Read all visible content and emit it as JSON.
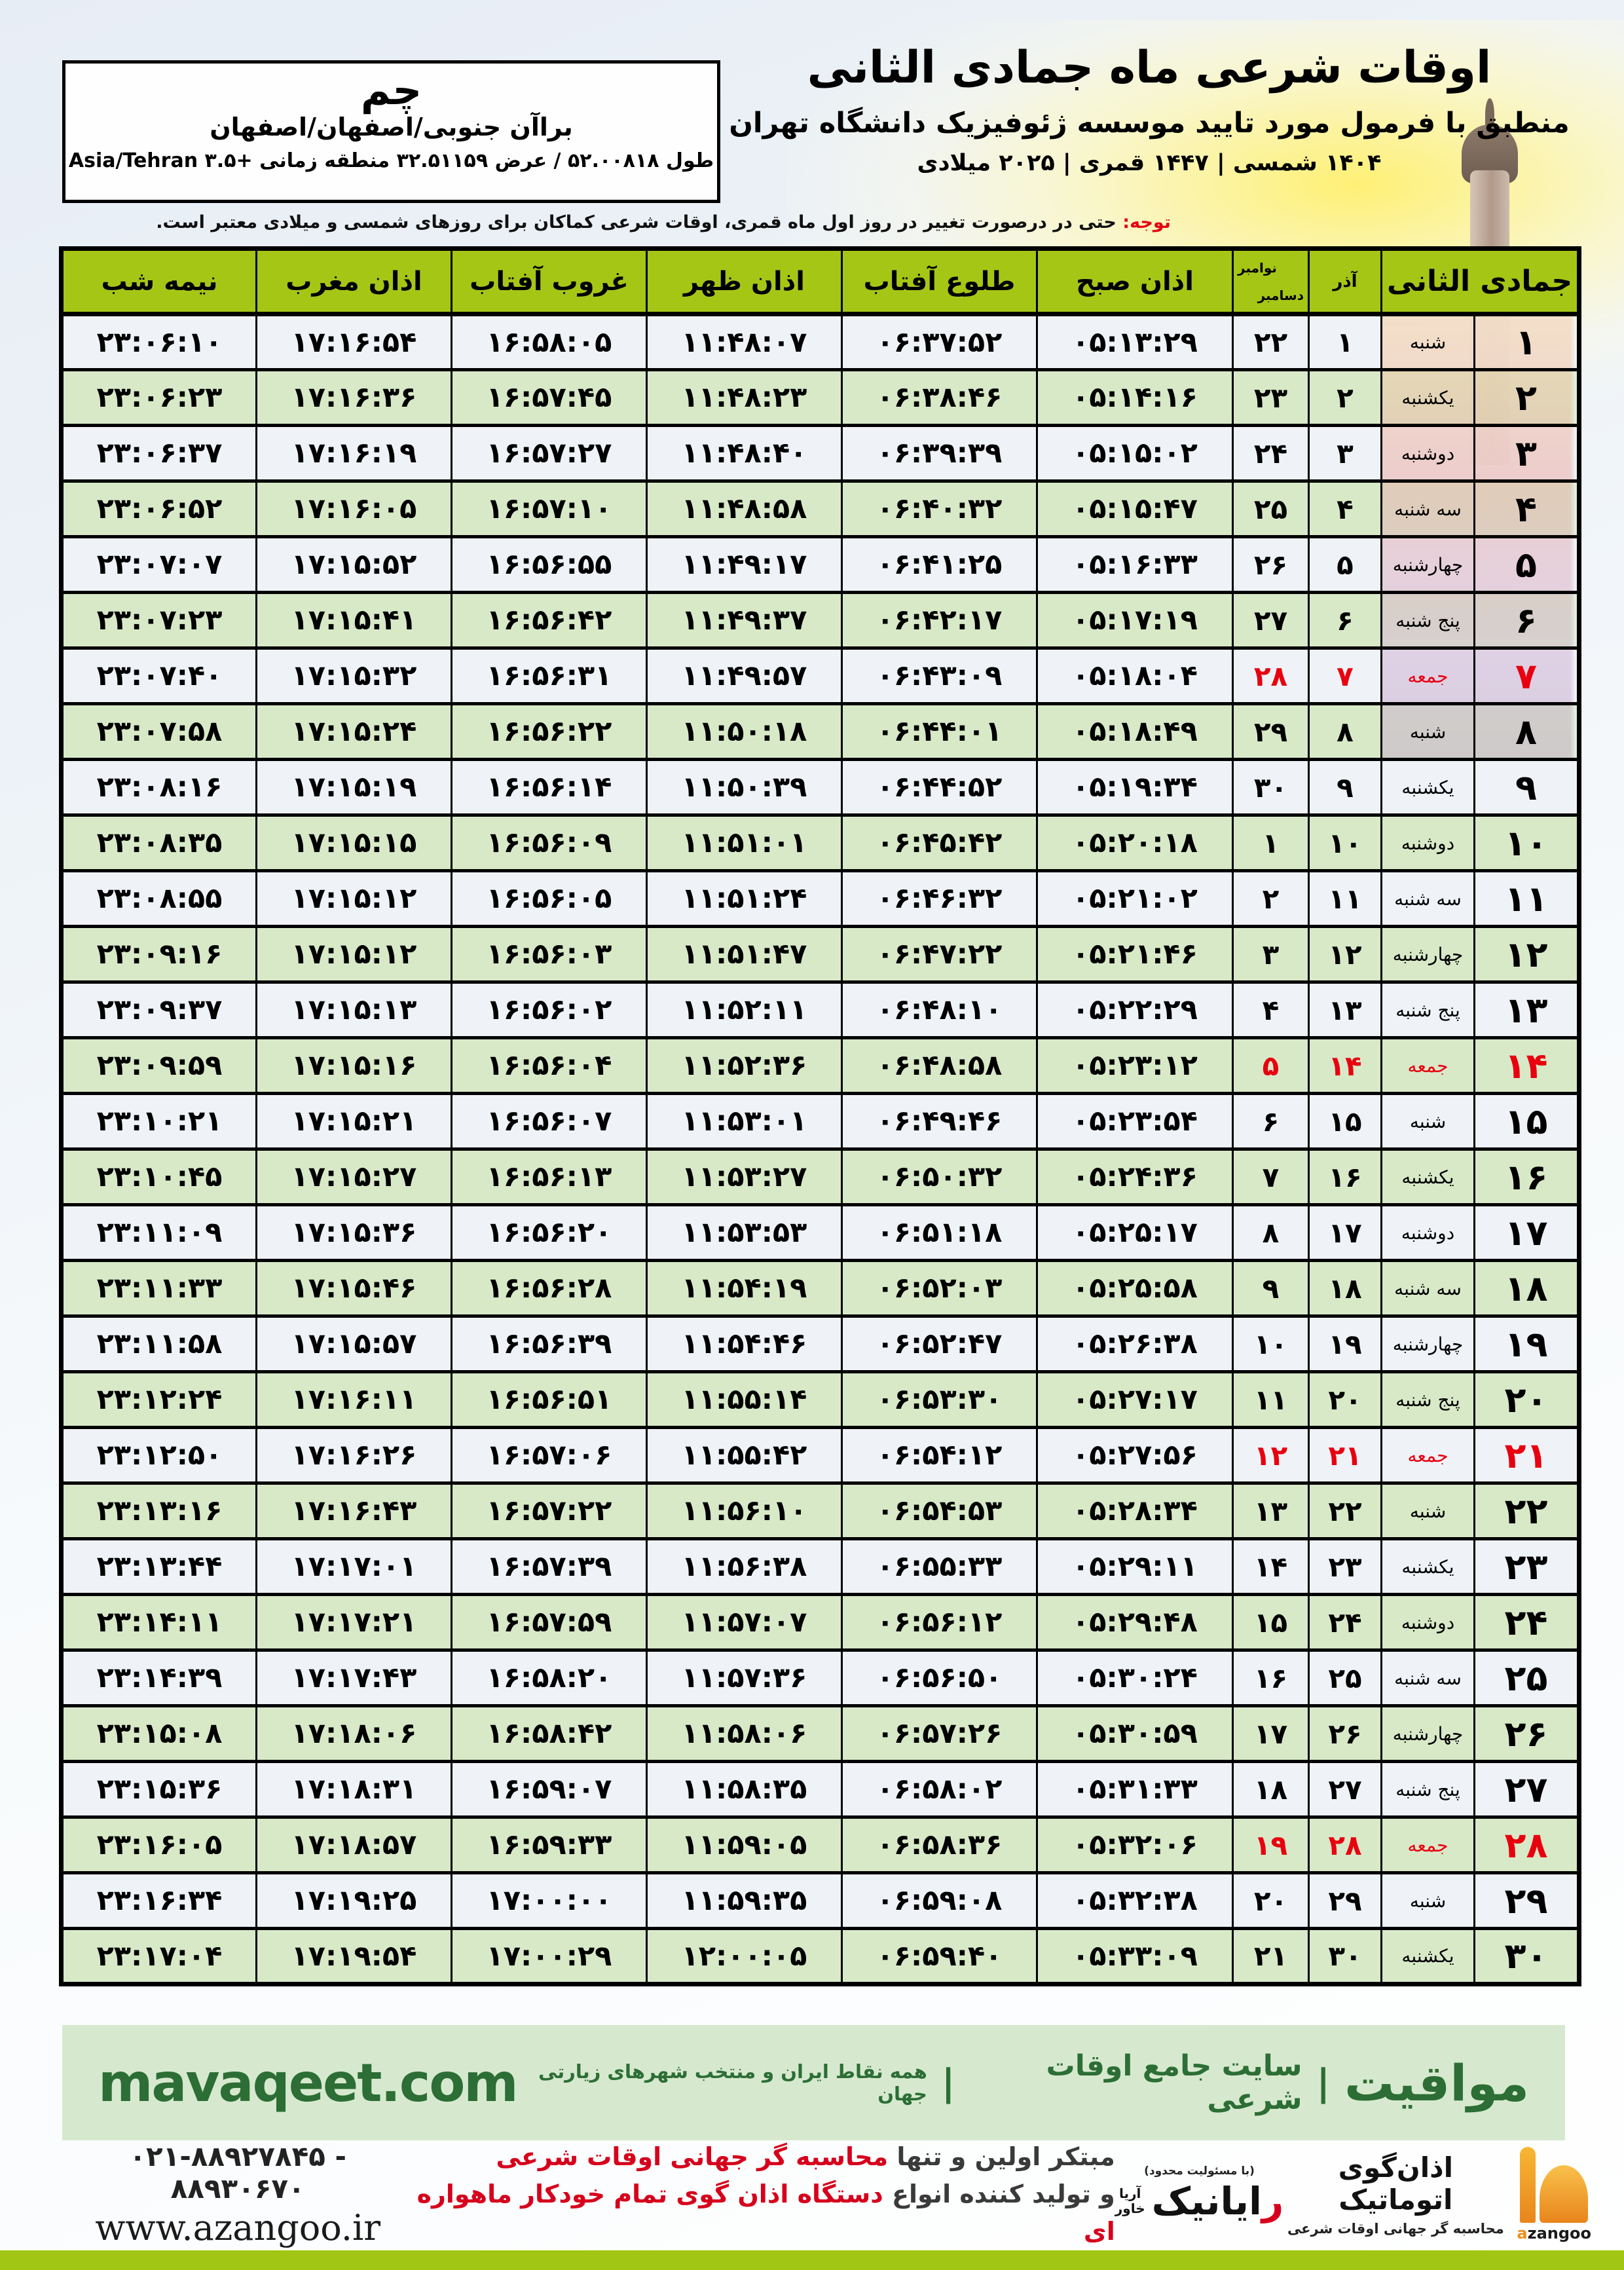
{
  "location_box": {
    "city": "چم",
    "region": "براآن جنوبی/اصفهان/اصفهان",
    "coords": "طول ۵۲.۰۰۸۱۸ / عرض ۳۲.۵۱۱۵۹ منطقه زمانی +۳.۵ Asia/Tehran"
  },
  "header": {
    "title": "اوقات شرعی ماه جمادی الثانی",
    "subtitle": "منطبق با فرمول مورد تایید موسسه ژئوفیزیک دانشگاه تهران",
    "years": "۱۴۰۴ شمسی | ۱۴۴۷ قمری | ۲۰۲۵ میلادی"
  },
  "notice": {
    "label": "توجه:",
    "text": "حتی در درصورت تغییر در روز اول ماه قمری، اوقات شرعی کماکان برای روزهای شمسی و میلادی معتبر است."
  },
  "table": {
    "headers": {
      "jamadi": "جمادی الثانی",
      "azar": "آذر",
      "november": "نوامبر",
      "december": "دسامبر",
      "fajr": "اذان صبح",
      "sunrise": "طلوع آفتاب",
      "dhuhr": "اذان ظهر",
      "sunset": "غروب آفتاب",
      "maghrib": "اذان مغرب",
      "midnight": "نیمه شب"
    },
    "rows": [
      {
        "d": 1,
        "w": "شنبه",
        "a": 1,
        "n": 22,
        "sobh": "05:13:29",
        "tolu": "06:37:52",
        "zohr": "11:48:07",
        "ghorub": "16:58:05",
        "maghreb": "17:16:54",
        "nime": "23:06:10",
        "f": false
      },
      {
        "d": 2,
        "w": "یکشنبه",
        "a": 2,
        "n": 23,
        "sobh": "05:14:16",
        "tolu": "06:38:46",
        "zohr": "11:48:23",
        "ghorub": "16:57:45",
        "maghreb": "17:16:36",
        "nime": "23:06:23",
        "f": false
      },
      {
        "d": 3,
        "w": "دوشنبه",
        "a": 3,
        "n": 24,
        "sobh": "05:15:02",
        "tolu": "06:39:39",
        "zohr": "11:48:40",
        "ghorub": "16:57:27",
        "maghreb": "17:16:19",
        "nime": "23:06:37",
        "f": false
      },
      {
        "d": 4,
        "w": "سه شنبه",
        "a": 4,
        "n": 25,
        "sobh": "05:15:47",
        "tolu": "06:40:32",
        "zohr": "11:48:58",
        "ghorub": "16:57:10",
        "maghreb": "17:16:05",
        "nime": "23:06:52",
        "f": false
      },
      {
        "d": 5,
        "w": "چهارشنبه",
        "a": 5,
        "n": 26,
        "sobh": "05:16:33",
        "tolu": "06:41:25",
        "zohr": "11:49:17",
        "ghorub": "16:56:55",
        "maghreb": "17:15:52",
        "nime": "23:07:07",
        "f": false
      },
      {
        "d": 6,
        "w": "پنج شنبه",
        "a": 6,
        "n": 27,
        "sobh": "05:17:19",
        "tolu": "06:42:17",
        "zohr": "11:49:37",
        "ghorub": "16:56:42",
        "maghreb": "17:15:41",
        "nime": "23:07:23",
        "f": false
      },
      {
        "d": 7,
        "w": "جمعه",
        "a": 7,
        "n": 28,
        "sobh": "05:18:04",
        "tolu": "06:43:09",
        "zohr": "11:49:57",
        "ghorub": "16:56:31",
        "maghreb": "17:15:32",
        "nime": "23:07:40",
        "f": true
      },
      {
        "d": 8,
        "w": "شنبه",
        "a": 8,
        "n": 29,
        "sobh": "05:18:49",
        "tolu": "06:44:01",
        "zohr": "11:50:18",
        "ghorub": "16:56:22",
        "maghreb": "17:15:24",
        "nime": "23:07:58",
        "f": false
      },
      {
        "d": 9,
        "w": "یکشنبه",
        "a": 9,
        "n": 30,
        "sobh": "05:19:34",
        "tolu": "06:44:52",
        "zohr": "11:50:39",
        "ghorub": "16:56:14",
        "maghreb": "17:15:19",
        "nime": "23:08:16",
        "f": false
      },
      {
        "d": 10,
        "w": "دوشنبه",
        "a": 10,
        "n": 1,
        "sobh": "05:20:18",
        "tolu": "06:45:42",
        "zohr": "11:51:01",
        "ghorub": "16:56:09",
        "maghreb": "17:15:15",
        "nime": "23:08:35",
        "f": false
      },
      {
        "d": 11,
        "w": "سه شنبه",
        "a": 11,
        "n": 2,
        "sobh": "05:21:02",
        "tolu": "06:46:32",
        "zohr": "11:51:24",
        "ghorub": "16:56:05",
        "maghreb": "17:15:12",
        "nime": "23:08:55",
        "f": false
      },
      {
        "d": 12,
        "w": "چهارشنبه",
        "a": 12,
        "n": 3,
        "sobh": "05:21:46",
        "tolu": "06:47:22",
        "zohr": "11:51:47",
        "ghorub": "16:56:03",
        "maghreb": "17:15:12",
        "nime": "23:09:16",
        "f": false
      },
      {
        "d": 13,
        "w": "پنج شنبه",
        "a": 13,
        "n": 4,
        "sobh": "05:22:29",
        "tolu": "06:48:10",
        "zohr": "11:52:11",
        "ghorub": "16:56:02",
        "maghreb": "17:15:13",
        "nime": "23:09:37",
        "f": false
      },
      {
        "d": 14,
        "w": "جمعه",
        "a": 14,
        "n": 5,
        "sobh": "05:23:12",
        "tolu": "06:48:58",
        "zohr": "11:52:36",
        "ghorub": "16:56:04",
        "maghreb": "17:15:16",
        "nime": "23:09:59",
        "f": true
      },
      {
        "d": 15,
        "w": "شنبه",
        "a": 15,
        "n": 6,
        "sobh": "05:23:54",
        "tolu": "06:49:46",
        "zohr": "11:53:01",
        "ghorub": "16:56:07",
        "maghreb": "17:15:21",
        "nime": "23:10:21",
        "f": false
      },
      {
        "d": 16,
        "w": "یکشنبه",
        "a": 16,
        "n": 7,
        "sobh": "05:24:36",
        "tolu": "06:50:32",
        "zohr": "11:53:27",
        "ghorub": "16:56:13",
        "maghreb": "17:15:27",
        "nime": "23:10:45",
        "f": false
      },
      {
        "d": 17,
        "w": "دوشنبه",
        "a": 17,
        "n": 8,
        "sobh": "05:25:17",
        "tolu": "06:51:18",
        "zohr": "11:53:53",
        "ghorub": "16:56:20",
        "maghreb": "17:15:36",
        "nime": "23:11:09",
        "f": false
      },
      {
        "d": 18,
        "w": "سه شنبه",
        "a": 18,
        "n": 9,
        "sobh": "05:25:58",
        "tolu": "06:52:03",
        "zohr": "11:54:19",
        "ghorub": "16:56:28",
        "maghreb": "17:15:46",
        "nime": "23:11:33",
        "f": false
      },
      {
        "d": 19,
        "w": "چهارشنبه",
        "a": 19,
        "n": 10,
        "sobh": "05:26:38",
        "tolu": "06:52:47",
        "zohr": "11:54:46",
        "ghorub": "16:56:39",
        "maghreb": "17:15:57",
        "nime": "23:11:58",
        "f": false
      },
      {
        "d": 20,
        "w": "پنج شنبه",
        "a": 20,
        "n": 11,
        "sobh": "05:27:17",
        "tolu": "06:53:30",
        "zohr": "11:55:14",
        "ghorub": "16:56:51",
        "maghreb": "17:16:11",
        "nime": "23:12:24",
        "f": false
      },
      {
        "d": 21,
        "w": "جمعه",
        "a": 21,
        "n": 12,
        "sobh": "05:27:56",
        "tolu": "06:54:12",
        "zohr": "11:55:42",
        "ghorub": "16:57:06",
        "maghreb": "17:16:26",
        "nime": "23:12:50",
        "f": true
      },
      {
        "d": 22,
        "w": "شنبه",
        "a": 22,
        "n": 13,
        "sobh": "05:28:34",
        "tolu": "06:54:53",
        "zohr": "11:56:10",
        "ghorub": "16:57:22",
        "maghreb": "17:16:43",
        "nime": "23:13:16",
        "f": false
      },
      {
        "d": 23,
        "w": "یکشنبه",
        "a": 23,
        "n": 14,
        "sobh": "05:29:11",
        "tolu": "06:55:33",
        "zohr": "11:56:38",
        "ghorub": "16:57:39",
        "maghreb": "17:17:01",
        "nime": "23:13:44",
        "f": false
      },
      {
        "d": 24,
        "w": "دوشنبه",
        "a": 24,
        "n": 15,
        "sobh": "05:29:48",
        "tolu": "06:56:12",
        "zohr": "11:57:07",
        "ghorub": "16:57:59",
        "maghreb": "17:17:21",
        "nime": "23:14:11",
        "f": false
      },
      {
        "d": 25,
        "w": "سه شنبه",
        "a": 25,
        "n": 16,
        "sobh": "05:30:24",
        "tolu": "06:56:50",
        "zohr": "11:57:36",
        "ghorub": "16:58:20",
        "maghreb": "17:17:43",
        "nime": "23:14:39",
        "f": false
      },
      {
        "d": 26,
        "w": "چهارشنبه",
        "a": 26,
        "n": 17,
        "sobh": "05:30:59",
        "tolu": "06:57:26",
        "zohr": "11:58:06",
        "ghorub": "16:58:42",
        "maghreb": "17:18:06",
        "nime": "23:15:08",
        "f": false
      },
      {
        "d": 27,
        "w": "پنج شنبه",
        "a": 27,
        "n": 18,
        "sobh": "05:31:33",
        "tolu": "06:58:02",
        "zohr": "11:58:35",
        "ghorub": "16:59:07",
        "maghreb": "17:18:31",
        "nime": "23:15:36",
        "f": false
      },
      {
        "d": 28,
        "w": "جمعه",
        "a": 28,
        "n": 19,
        "sobh": "05:32:06",
        "tolu": "06:58:36",
        "zohr": "11:59:05",
        "ghorub": "16:59:33",
        "maghreb": "17:18:57",
        "nime": "23:16:05",
        "f": true
      },
      {
        "d": 29,
        "w": "شنبه",
        "a": 29,
        "n": 20,
        "sobh": "05:32:38",
        "tolu": "06:59:08",
        "zohr": "11:59:35",
        "ghorub": "17:00:00",
        "maghreb": "17:19:25",
        "nime": "23:16:34",
        "f": false
      },
      {
        "d": 30,
        "w": "یکشنبه",
        "a": 30,
        "n": 21,
        "sobh": "05:33:09",
        "tolu": "06:59:40",
        "zohr": "12:00:05",
        "ghorub": "17:00:29",
        "maghreb": "17:19:54",
        "nime": "23:17:04",
        "f": false
      }
    ]
  },
  "brand_band": {
    "domain": "mavaqeet.com",
    "brand": "مواقیت",
    "pipe": "|",
    "tagline1": "سایت جامع اوقات شرعی",
    "tagline2": "همه نقاط ایران و منتخب شهرهای زیارتی جهان"
  },
  "bottom": {
    "phone": "۰۲۱-۸۸۹۲۷۸۴۵ - ۸۸۹۳۰۶۷۰",
    "website": "www.azangoo.ir",
    "maker_line1_black": "مبتکر اولین و تنها",
    "maker_line1_red": "محاسبه گر جهانی اوقات شرعی",
    "maker_line2_black": "و تولید کننده انواع",
    "maker_line2_red": "دستگاه اذان گوی تمام خودکار ماهواره ای",
    "rayanik": {
      "note": "(با مسئولیت محدود)",
      "initial": "ر",
      "rest": "ایانیک",
      "stack_top": "آریا",
      "stack_bottom": "خاور"
    },
    "azangoo": {
      "title": "اذان‌گوی اتوماتیک",
      "subtitle": "محاسبه گر جهانی اوقات شرعی",
      "latin_a": "a",
      "latin_rest": "zangoo"
    }
  },
  "colors": {
    "header_green": "#a6c616",
    "row_green": "#d8e9c8",
    "row_light": "#eff3f8",
    "friday_red": "#e8000f",
    "brand_green": "#2c6e35",
    "band_bg": "#d6e9ce",
    "strip_lime": "#a2c614",
    "azangoo_orange": "#ef8f1c"
  }
}
